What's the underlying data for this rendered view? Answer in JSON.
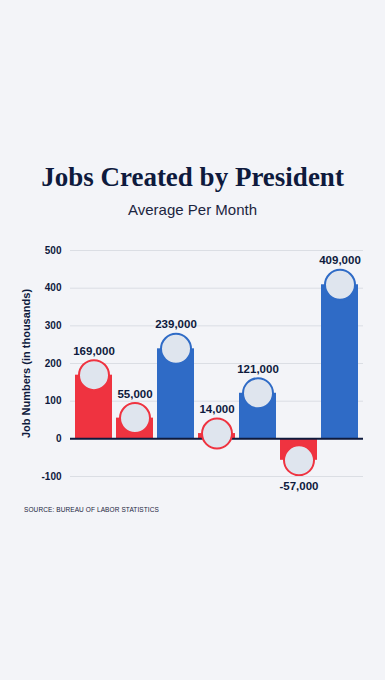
{
  "chart_data": {
    "type": "bar",
    "title": "Jobs Created by President",
    "subtitle": "Average Per Month",
    "y_label": "Job Numbers (in thousands)",
    "source": "SOURCE: BUREAU OF LABOR STATISTICS",
    "categories": [
      null,
      null,
      null,
      null,
      null,
      null,
      null
    ],
    "values": [
      169,
      55,
      239,
      14,
      121,
      -57,
      409
    ],
    "value_labels": [
      "169,000",
      "55,000",
      "239,000",
      "14,000",
      "121,000",
      "-57,000",
      "409,000"
    ],
    "colors": [
      "#ef3340",
      "#ef3340",
      "#2f6bc6",
      "#ef3340",
      "#2f6bc6",
      "#ef3340",
      "#2f6bc6"
    ],
    "ylim": [
      -100,
      500
    ],
    "yticks": [
      -100,
      0,
      100,
      200,
      300,
      400,
      500
    ],
    "grid": true,
    "data_labels": true
  }
}
